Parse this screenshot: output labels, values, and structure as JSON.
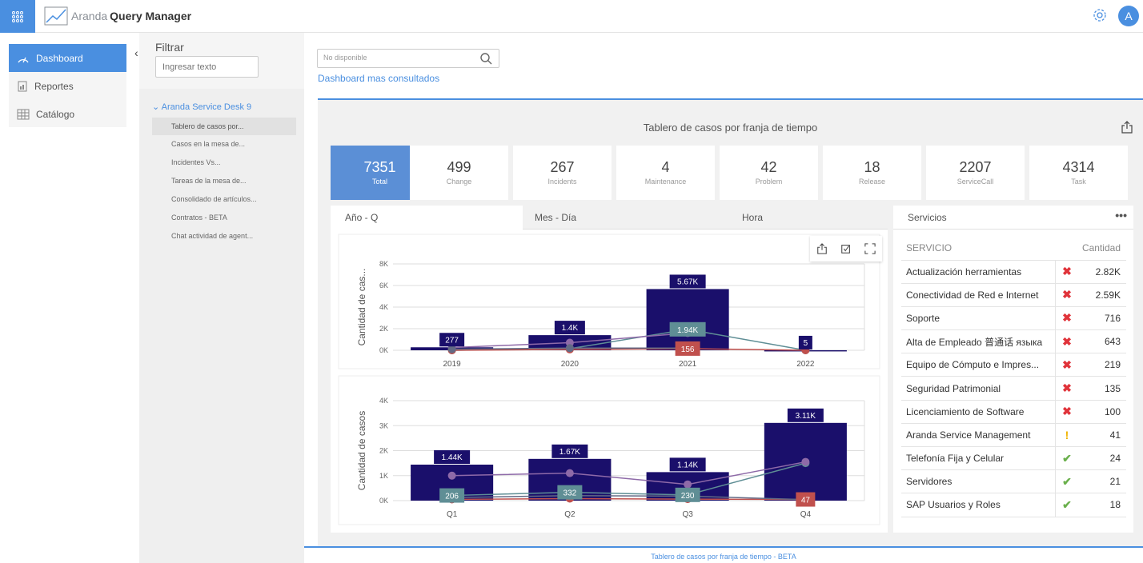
{
  "app": {
    "brand_light": "Aranda",
    "brand_bold": "Query Manager",
    "avatar_initial": "A"
  },
  "nav": {
    "items": [
      {
        "label": "Dashboard",
        "icon": "dashboard-icon"
      },
      {
        "label": "Reportes",
        "icon": "report-icon"
      },
      {
        "label": "Catálogo",
        "icon": "catalog-icon"
      }
    ]
  },
  "filter": {
    "title": "Filtrar",
    "placeholder": "Ingresar texto"
  },
  "tree": {
    "root": "Aranda Service Desk 9",
    "items": [
      "Tablero de casos por...",
      "Casos en la mesa de...",
      "Incidentes Vs...",
      "Tareas de la mesa de...",
      "Consolidado de artículos...",
      "Contratos - BETA",
      "Chat actividad de agent..."
    ]
  },
  "search": {
    "placeholder": "No disponible"
  },
  "dashboard": {
    "link": "Dashboard mas consultados",
    "title": "Tablero de casos por franja de tiempo"
  },
  "kpis": [
    {
      "value": "7351",
      "label": "Total"
    },
    {
      "value": "499",
      "label": "Change"
    },
    {
      "value": "267",
      "label": "Incidents"
    },
    {
      "value": "4",
      "label": "Maintenance"
    },
    {
      "value": "42",
      "label": "Problem"
    },
    {
      "value": "18",
      "label": "Release"
    },
    {
      "value": "2207",
      "label": "ServiceCall"
    },
    {
      "value": "4314",
      "label": "Task"
    }
  ],
  "tabs": [
    "Año - Q",
    "Mes - Día",
    "Hora"
  ],
  "chart_data": [
    {
      "type": "bar",
      "ylabel": "Cantidad de cas...",
      "categories": [
        "2019",
        "2020",
        "2021",
        "2022"
      ],
      "yticks": [
        "0K",
        "2K",
        "4K",
        "6K",
        "8K"
      ],
      "ylim": [
        0,
        8000
      ],
      "bars": [
        277,
        1400,
        5670,
        5
      ],
      "bar_labels": [
        "277",
        "1.4K",
        "5.67K",
        "5"
      ],
      "series": [
        {
          "values": [
            0,
            150,
            1940,
            0
          ],
          "point_labels": [
            "",
            "",
            "1.94K",
            ""
          ],
          "color": "#5f8e95"
        },
        {
          "values": [
            0,
            80,
            156,
            0
          ],
          "point_labels": [
            "",
            "",
            "156",
            ""
          ],
          "color": "#c0504d"
        },
        {
          "values": [
            250,
            700,
            1600,
            null
          ],
          "color": "#8e6aa8"
        },
        {
          "values": [
            100,
            200,
            200,
            null
          ],
          "color": "#636a85"
        }
      ]
    },
    {
      "type": "bar",
      "ylabel": "Cantidad de casos",
      "categories": [
        "Q1",
        "Q2",
        "Q3",
        "Q4"
      ],
      "yticks": [
        "0K",
        "1K",
        "2K",
        "3K",
        "4K"
      ],
      "ylim": [
        0,
        4000
      ],
      "bars": [
        1440,
        1670,
        1140,
        3110
      ],
      "bar_labels": [
        "1.44K",
        "1.67K",
        "1.14K",
        "3.11K"
      ],
      "series": [
        {
          "values": [
            206,
            332,
            230,
            1500
          ],
          "point_labels": [
            "206",
            "332",
            "230",
            ""
          ],
          "color": "#5f8e95"
        },
        {
          "values": [
            50,
            80,
            60,
            47
          ],
          "point_labels": [
            "",
            "",
            "",
            "47"
          ],
          "color": "#c0504d"
        },
        {
          "values": [
            1000,
            1100,
            650,
            1550
          ],
          "color": "#8e6aa8"
        },
        {
          "values": [
            120,
            200,
            180,
            40
          ],
          "color": "#636a85"
        }
      ]
    }
  ],
  "servicios": {
    "title": "Servicios",
    "col_service": "SERVICIO",
    "col_qty": "Cantidad",
    "rows": [
      {
        "name": "Actualización herramientas",
        "status": "✖",
        "color": "#e0333a",
        "qty": "2.82K"
      },
      {
        "name": "Conectividad de Red e Internet",
        "status": "✖",
        "color": "#e0333a",
        "qty": "2.59K"
      },
      {
        "name": "Soporte",
        "status": "✖",
        "color": "#e0333a",
        "qty": "716"
      },
      {
        "name": "Alta de Empleado 普通话 языка",
        "status": "✖",
        "color": "#e0333a",
        "qty": "643"
      },
      {
        "name": "Equipo de Cómputo e Impres...",
        "status": "✖",
        "color": "#e0333a",
        "qty": "219"
      },
      {
        "name": "Seguridad Patrimonial",
        "status": "✖",
        "color": "#e0333a",
        "qty": "135"
      },
      {
        "name": "Licenciamiento de Software",
        "status": "✖",
        "color": "#e0333a",
        "qty": "100"
      },
      {
        "name": "Aranda Service Management",
        "status": "!",
        "color": "#f0b400",
        "qty": "41"
      },
      {
        "name": "Telefonía Fija y Celular",
        "status": "✔",
        "color": "#6ab04c",
        "qty": "24"
      },
      {
        "name": "Servidores",
        "status": "✔",
        "color": "#6ab04c",
        "qty": "21"
      },
      {
        "name": "SAP Usuarios y Roles",
        "status": "✔",
        "color": "#6ab04c",
        "qty": "18"
      }
    ]
  },
  "footer": "Tablero de casos por franja de tiempo - BETA",
  "colors": {
    "accent": "#4a8fe0",
    "bar": "#1a0f6b",
    "kpi_active": "#5b8fd6"
  }
}
